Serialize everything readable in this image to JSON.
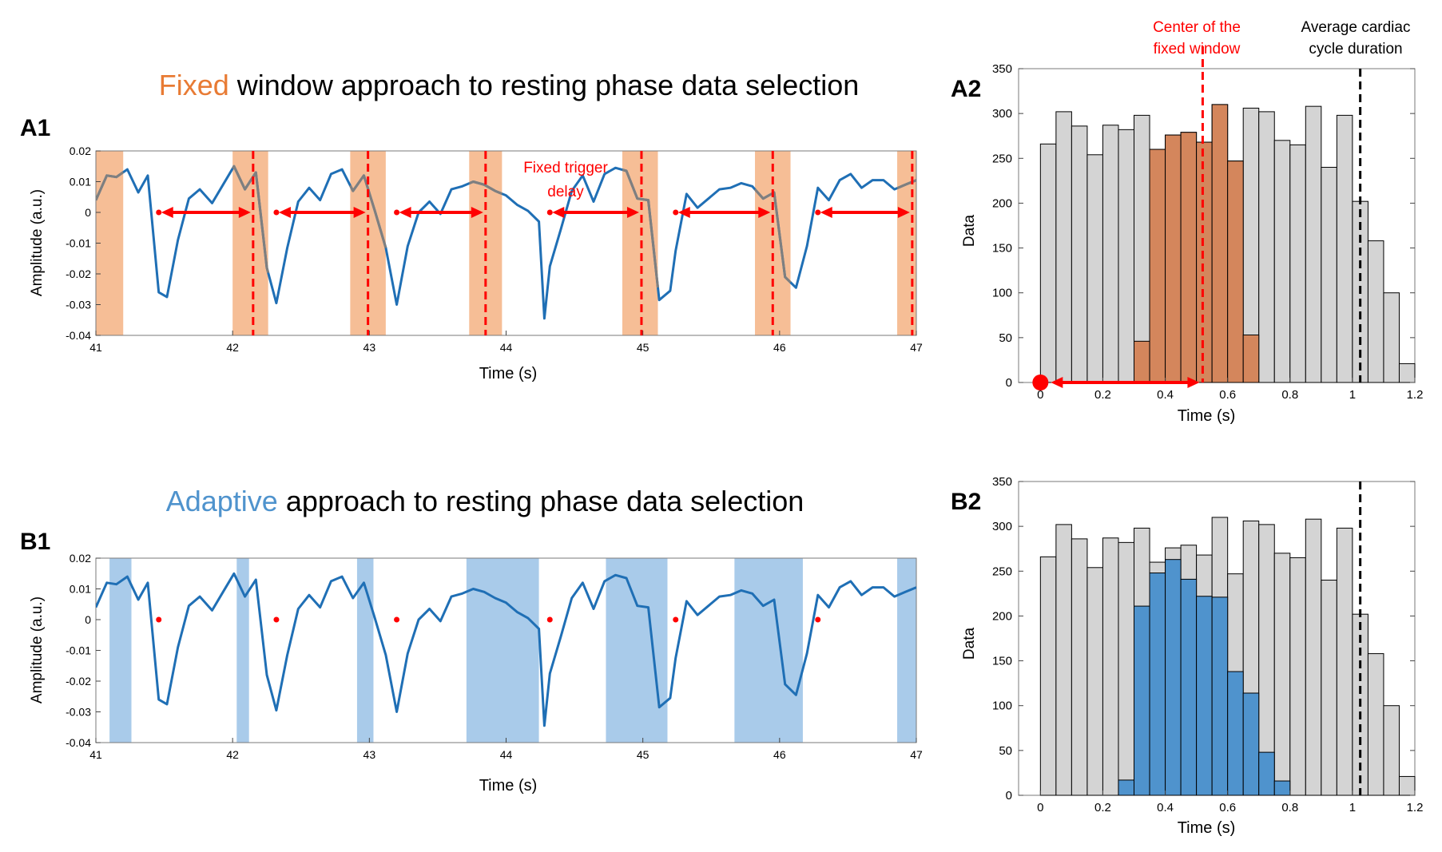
{
  "colors": {
    "fixed_accent": "#E87B34",
    "adaptive_accent": "#4F93CD",
    "signal": "#1F6FB5",
    "signal_gray": "#7F7F7F",
    "fixed_window": "#F6BE96",
    "adaptive_window": "#A9CBEA",
    "marker": "#FF0000",
    "hist_gray": "#D4D4D4",
    "hist_fixed": "#D4865C",
    "hist_adaptive": "#4F93CD",
    "dashed_black": "#000000"
  },
  "chart_data": [
    {
      "id": "A1",
      "panel_label": "A1",
      "type": "line",
      "title_accent": "Fixed",
      "title_rest": " window approach to resting phase data selection",
      "xlabel": "Time (s)",
      "ylabel": "Amplitude (a.u.)",
      "xlim": [
        41,
        47
      ],
      "ylim": [
        -0.04,
        0.02
      ],
      "xticks": [
        41,
        42,
        43,
        44,
        45,
        46,
        47
      ],
      "yticks": [
        -0.04,
        -0.03,
        -0.02,
        -0.01,
        0,
        0.01,
        0.02
      ],
      "yticklabels": [
        "-0.04",
        "-0.03",
        "-0.02",
        "-0.01",
        "0",
        "0.01",
        "0.02"
      ],
      "x": [
        41.0,
        41.08,
        41.15,
        41.23,
        41.31,
        41.38,
        41.46,
        41.52,
        41.6,
        41.68,
        41.76,
        41.85,
        41.93,
        42.01,
        42.09,
        42.17,
        42.25,
        42.32,
        42.4,
        42.48,
        42.56,
        42.64,
        42.72,
        42.8,
        42.88,
        42.96,
        43.04,
        43.12,
        43.2,
        43.28,
        43.36,
        43.44,
        43.52,
        43.6,
        43.68,
        43.76,
        43.84,
        43.92,
        44.0,
        44.08,
        44.16,
        44.24,
        44.28,
        44.32,
        44.4,
        44.48,
        44.56,
        44.64,
        44.72,
        44.8,
        44.88,
        44.96,
        45.04,
        45.12,
        45.2,
        45.24,
        45.32,
        45.4,
        45.48,
        45.56,
        45.64,
        45.72,
        45.8,
        45.88,
        45.96,
        46.04,
        46.12,
        46.2,
        46.28,
        46.36,
        46.44,
        46.52,
        46.6,
        46.68,
        46.76,
        46.84,
        46.92,
        47.0
      ],
      "y": [
        0.004,
        0.012,
        0.0115,
        0.014,
        0.0065,
        0.012,
        -0.026,
        -0.0275,
        -0.009,
        0.0045,
        0.0075,
        0.003,
        0.009,
        0.015,
        0.0075,
        0.013,
        -0.018,
        -0.0295,
        -0.0115,
        0.0035,
        0.008,
        0.004,
        0.0125,
        0.014,
        0.007,
        0.012,
        0.0005,
        -0.0115,
        -0.03,
        -0.011,
        0.0,
        0.0035,
        -0.0005,
        0.0075,
        0.0085,
        0.01,
        0.009,
        0.007,
        0.0055,
        0.0025,
        0.0005,
        -0.003,
        -0.0345,
        -0.0175,
        -0.0055,
        0.007,
        0.012,
        0.0035,
        0.0125,
        0.0145,
        0.0135,
        0.0045,
        0.004,
        -0.0285,
        -0.0255,
        -0.0125,
        0.006,
        0.0015,
        0.0045,
        0.0075,
        0.008,
        0.0095,
        0.0085,
        0.0045,
        0.0065,
        -0.021,
        -0.0245,
        -0.011,
        0.008,
        0.004,
        0.0105,
        0.0125,
        0.008,
        0.0105,
        0.0105,
        0.0075,
        0.009,
        0.0105
      ],
      "windows": [
        [
          41.0,
          41.2
        ],
        [
          42.0,
          42.26
        ],
        [
          42.86,
          43.12
        ],
        [
          43.73,
          43.97
        ],
        [
          44.85,
          45.11
        ],
        [
          45.82,
          46.08
        ],
        [
          46.86,
          47.0
        ]
      ],
      "trigger_points": [
        41.46,
        42.32,
        43.2,
        44.32,
        45.24,
        46.28
      ],
      "dashed_lines": [
        42.15,
        42.99,
        43.85,
        44.99,
        45.95,
        46.97
      ],
      "annotation_line1": "Fixed trigger",
      "annotation_line2": "delay"
    },
    {
      "id": "B1",
      "panel_label": "B1",
      "type": "line",
      "title_accent": "Adaptive",
      "title_rest": " approach to resting phase data selection",
      "xlabel": "Time (s)",
      "ylabel": "Amplitude (a.u.)",
      "xlim": [
        41,
        47
      ],
      "ylim": [
        -0.04,
        0.02
      ],
      "xticks": [
        41,
        42,
        43,
        44,
        45,
        46,
        47
      ],
      "yticks": [
        -0.04,
        -0.03,
        -0.02,
        -0.01,
        0,
        0.01,
        0.02
      ],
      "yticklabels": [
        "-0.04",
        "-0.03",
        "-0.02",
        "-0.01",
        "0",
        "0.01",
        "0.02"
      ],
      "windows": [
        [
          41.1,
          41.26
        ],
        [
          42.03,
          42.12
        ],
        [
          42.91,
          43.03
        ],
        [
          43.71,
          44.24
        ],
        [
          44.73,
          45.18
        ],
        [
          45.67,
          46.17
        ],
        [
          46.86,
          47.0
        ]
      ],
      "trigger_points": [
        41.46,
        42.32,
        43.2,
        44.32,
        45.24,
        46.28
      ]
    },
    {
      "id": "A2",
      "panel_label": "A2",
      "type": "bar",
      "xlabel": "Time (s)",
      "ylabel": "Data",
      "xlim": [
        -0.07,
        1.2
      ],
      "ylim": [
        0,
        350
      ],
      "xticks": [
        0,
        0.2,
        0.4,
        0.6,
        0.8,
        1,
        1.2
      ],
      "xticklabels": [
        "0",
        "0.2",
        "0.4",
        "0.6",
        "0.8",
        "1",
        "1.2"
      ],
      "yticks": [
        0,
        50,
        100,
        150,
        200,
        250,
        300,
        350
      ],
      "bin_start": 0,
      "bin_width": 0.05,
      "totals": [
        266,
        302,
        286,
        254,
        287,
        282,
        298,
        260,
        276,
        279,
        268,
        310,
        247,
        306,
        302,
        270,
        265,
        308,
        240,
        298,
        202,
        158,
        100,
        21
      ],
      "selected": [
        0,
        0,
        0,
        0,
        0,
        0,
        46,
        260,
        276,
        279,
        268,
        310,
        247,
        53,
        0,
        0,
        0,
        0,
        0,
        0,
        0,
        0,
        0,
        0
      ],
      "center_line": 0.52,
      "average_line": 1.025,
      "trigger_x": 0,
      "center_label_line1": "Center of the",
      "center_label_line2": "fixed window",
      "avg_label_line1": "Average cardiac",
      "avg_label_line2": "cycle duration"
    },
    {
      "id": "B2",
      "panel_label": "B2",
      "type": "bar",
      "xlabel": "Time (s)",
      "ylabel": "Data",
      "xlim": [
        -0.07,
        1.2
      ],
      "ylim": [
        0,
        350
      ],
      "xticks": [
        0,
        0.2,
        0.4,
        0.6,
        0.8,
        1,
        1.2
      ],
      "xticklabels": [
        "0",
        "0.2",
        "0.4",
        "0.6",
        "0.8",
        "1",
        "1.2"
      ],
      "yticks": [
        0,
        50,
        100,
        150,
        200,
        250,
        300,
        350
      ],
      "bin_start": 0,
      "bin_width": 0.05,
      "totals": [
        266,
        302,
        286,
        254,
        287,
        282,
        298,
        260,
        276,
        279,
        268,
        310,
        247,
        306,
        302,
        270,
        265,
        308,
        240,
        298,
        202,
        158,
        100,
        21
      ],
      "selected": [
        0,
        0,
        0,
        0,
        0,
        17,
        211,
        248,
        263,
        241,
        222,
        221,
        138,
        114,
        48,
        16,
        0,
        0,
        0,
        0,
        0,
        0,
        0,
        0
      ],
      "average_line": 1.025
    }
  ]
}
